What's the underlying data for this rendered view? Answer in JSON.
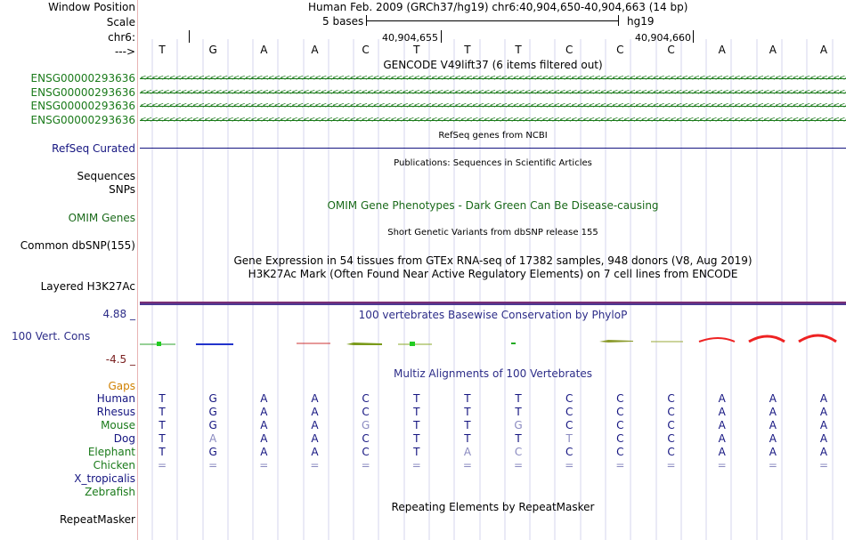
{
  "header": {
    "window_position_label": "Window Position",
    "window_position_value": "Human Feb. 2009 (GRCh37/hg19)   chr6:40,904,650-40,904,663 (14 bp)",
    "scale_label": "Scale",
    "scale_bases": "5 bases",
    "scale_assembly": "hg19",
    "chrom_label": "chr6:",
    "coord_1": "40,904,655",
    "coord_2": "40,904,660",
    "arrow_label": "--->"
  },
  "sequence": [
    "T",
    "G",
    "A",
    "A",
    "C",
    "T",
    "T",
    "T",
    "C",
    "C",
    "C",
    "A",
    "A",
    "A"
  ],
  "tracks": {
    "gencode_title": "GENCODE V49lift37 (6 items filtered out)",
    "gencode_items": [
      "ENSG00000293636",
      "ENSG00000293636",
      "ENSG00000293636",
      "ENSG00000293636"
    ],
    "gene_arrows": "<<<<<<<<<<<<<<<<<<<<<<<<<<<<<<<<<<<<<<<<<<<<<<<<<<<<<<<<<<<<<<<<<<<<<<<<<<<<<<<<<<<<<<<<<<<<<<<<<<<<<<<<<<<<<<<<<<<<<<<<<<<<<<<<<<<<<<<<<<<<<<<<<<<<<<<<<<<<<<<<<<<<<<<<<<<<<<<<<<<<",
    "refseq_title": "RefSeq genes from NCBI",
    "refseq_label": "RefSeq Curated",
    "publications_title": "Publications: Sequences in Scientific Articles",
    "sequences_label": "Sequences",
    "snps_label": "SNPs",
    "omim_title": "OMIM Gene Phenotypes - Dark Green Can Be Disease-causing",
    "omim_label": "OMIM Genes",
    "dbsnp_title": "Short Genetic Variants from dbSNP release 155",
    "dbsnp_label": "Common dbSNP(155)",
    "gtex_title": "Gene Expression in 54 tissues from GTEx RNA-seq of 17382 samples, 948 donors (V8, Aug 2019)",
    "h3k27_title": "H3K27Ac Mark (Often Found Near Active Regulatory Elements) on 7 cell lines from ENCODE",
    "h3k27_label": "Layered H3K27Ac",
    "phylop_title": "100 vertebrates Basewise Conservation by PhyloP",
    "phylop_label": "100 Vert. Cons",
    "phylop_max": "4.88 _",
    "phylop_min": "-4.5 _",
    "multiz_title": "Multiz Alignments of 100 Vertebrates",
    "gaps_label": "Gaps",
    "repeat_title": "Repeating Elements by RepeatMasker",
    "repeat_label": "RepeatMasker"
  },
  "alignment": [
    {
      "species": "Human",
      "bases": [
        "T",
        "G",
        "A",
        "A",
        "C",
        "T",
        "T",
        "T",
        "C",
        "C",
        "C",
        "A",
        "A",
        "A"
      ],
      "dim": []
    },
    {
      "species": "Rhesus",
      "bases": [
        "T",
        "G",
        "A",
        "A",
        "C",
        "T",
        "T",
        "T",
        "C",
        "C",
        "C",
        "A",
        "A",
        "A"
      ],
      "dim": []
    },
    {
      "species": "Mouse",
      "bases": [
        "T",
        "G",
        "A",
        "A",
        "G",
        "T",
        "T",
        "G",
        "C",
        "C",
        "C",
        "A",
        "A",
        "A"
      ],
      "dim": [
        4,
        7
      ]
    },
    {
      "species": "Dog",
      "bases": [
        "T",
        "A",
        "A",
        "A",
        "C",
        "T",
        "T",
        "T",
        "T",
        "C",
        "C",
        "A",
        "A",
        "A"
      ],
      "dim": [
        1,
        8
      ]
    },
    {
      "species": "Elephant",
      "bases": [
        "T",
        "G",
        "A",
        "A",
        "C",
        "T",
        "A",
        "C",
        "C",
        "C",
        "C",
        "A",
        "A",
        "A"
      ],
      "dim": [
        6,
        7
      ]
    },
    {
      "species": "Chicken",
      "bases": [
        "=",
        "=",
        "=",
        "=",
        "=",
        "=",
        "=",
        "=",
        "=",
        "=",
        "=",
        "=",
        "=",
        "="
      ],
      "dim": []
    },
    {
      "species": "X_tropicalis",
      "bases": [],
      "dim": []
    },
    {
      "species": "Zebrafish",
      "bases": [],
      "dim": []
    }
  ],
  "colors": {
    "gene_green": "#1a7a1a",
    "navy": "#141480",
    "phylop_navy": "#2c2c88",
    "omim_green": "#1a6a1a",
    "gaps_orange": "#d08000",
    "species_green": "#1a7a1a",
    "dim_base": "#8a8ac0"
  }
}
